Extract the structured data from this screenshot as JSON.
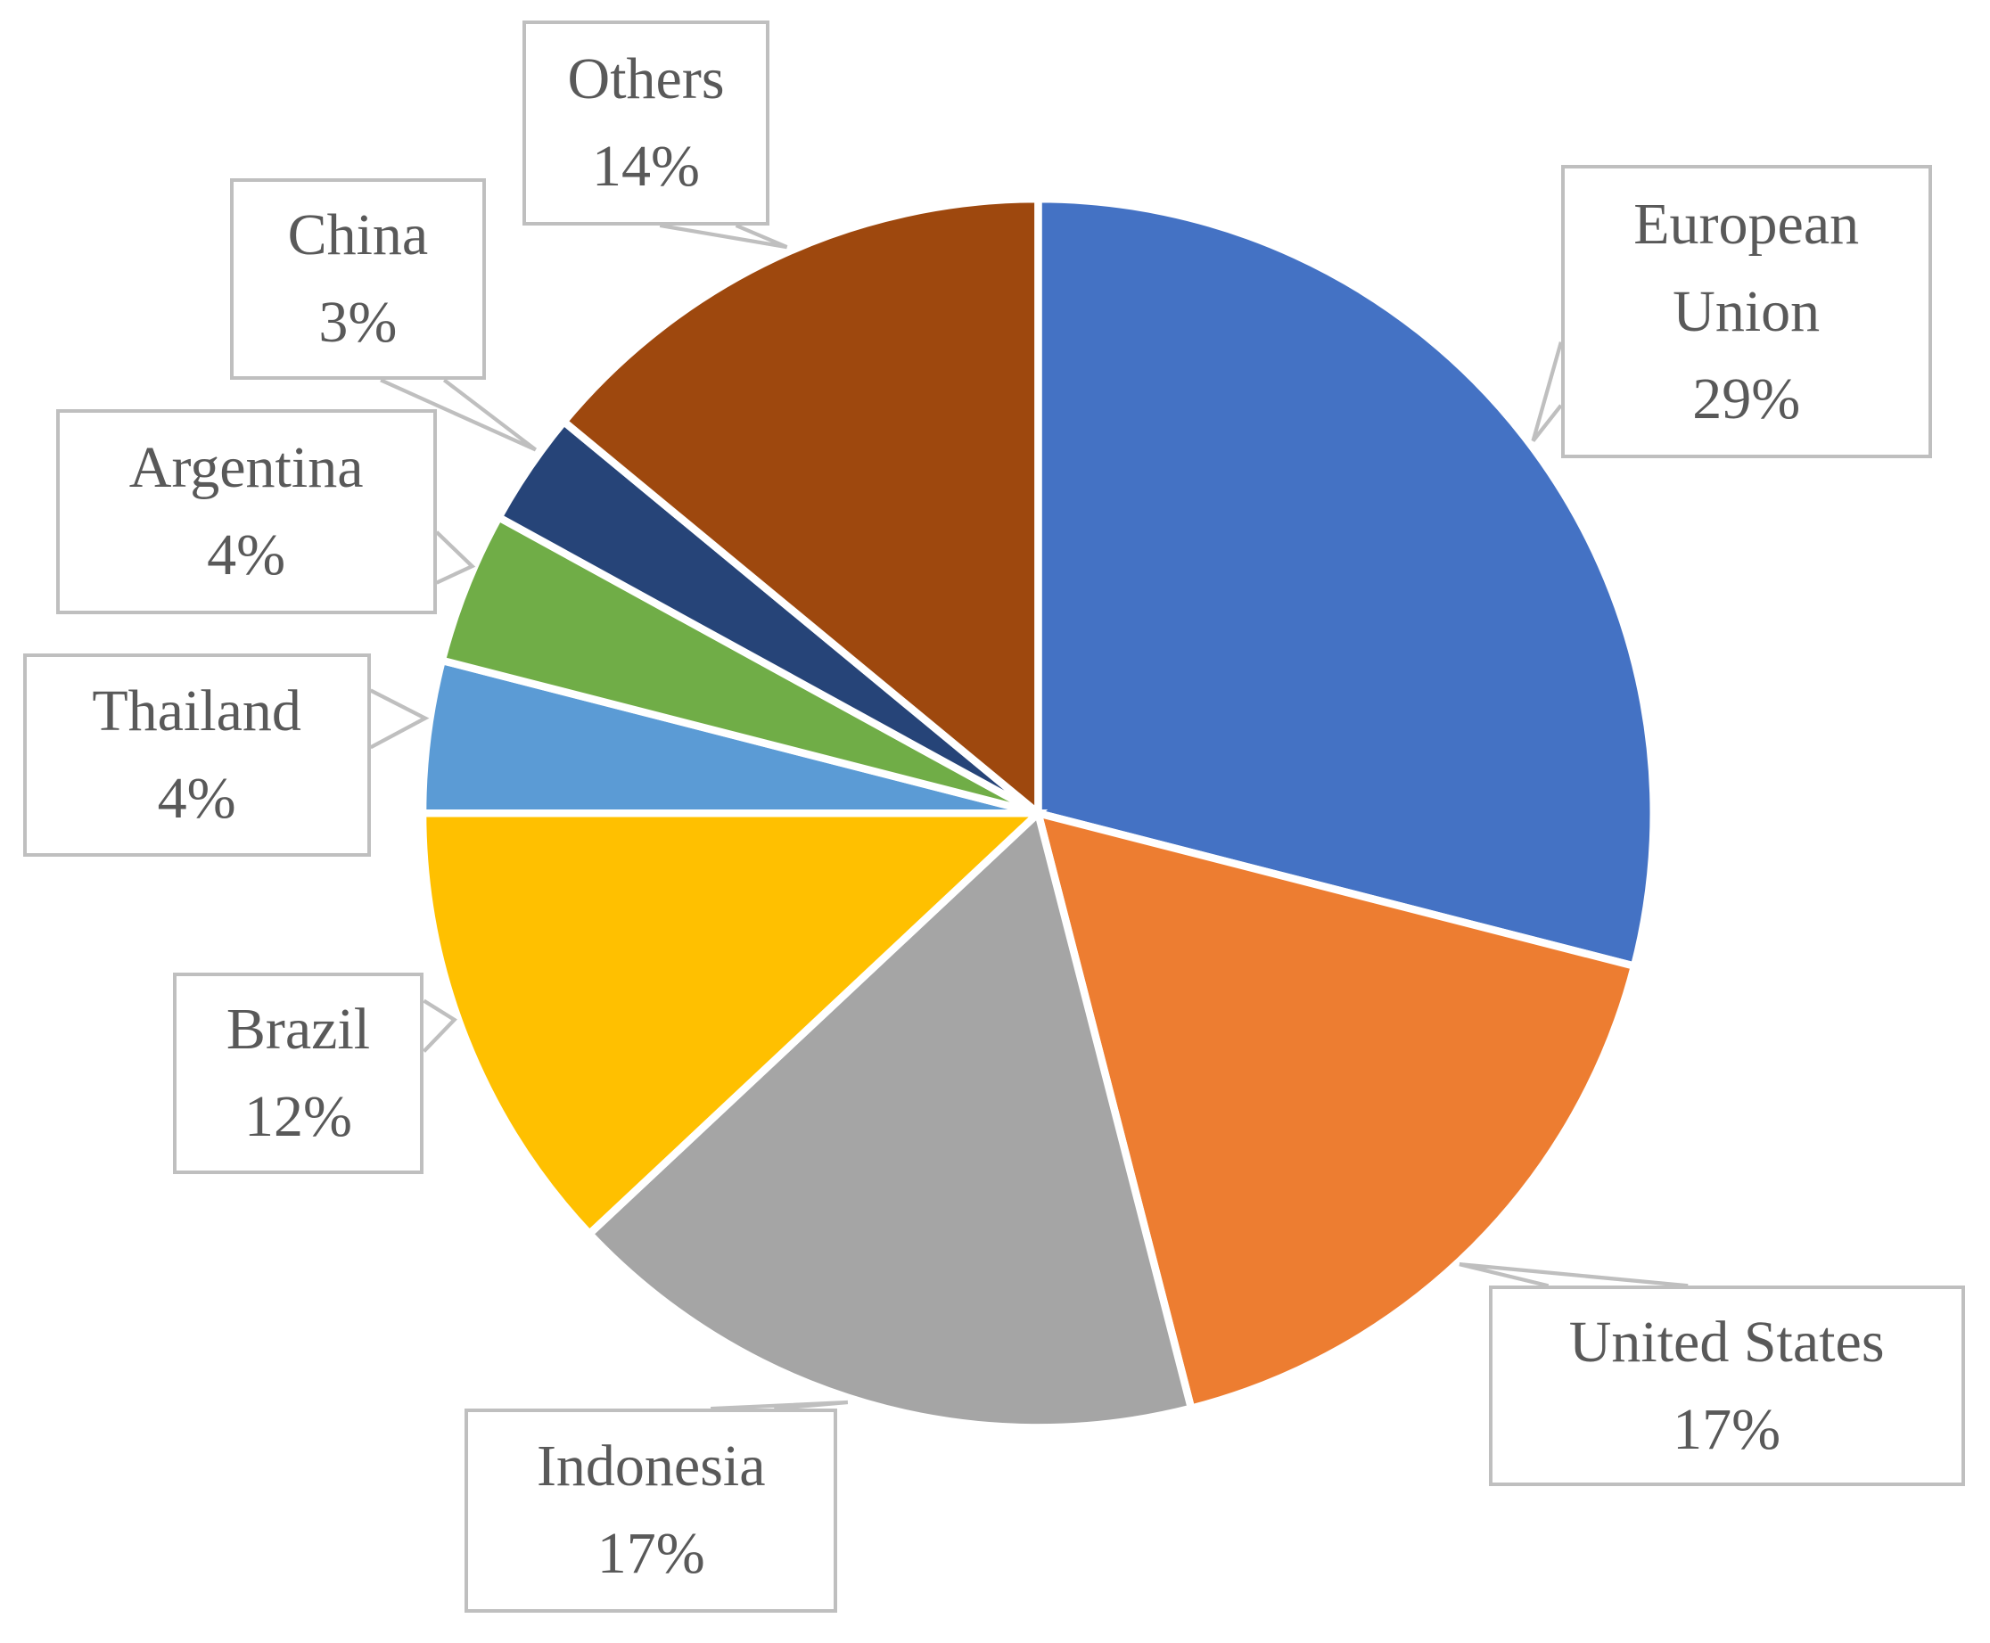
{
  "chart_data": {
    "type": "pie",
    "categories": [
      "European Union",
      "United States",
      "Indonesia",
      "Brazil",
      "Thailand",
      "Argentina",
      "China",
      "Others"
    ],
    "values": [
      29,
      17,
      17,
      12,
      4,
      4,
      3,
      14
    ],
    "value_labels": [
      "29%",
      "17%",
      "17%",
      "12%",
      "4%",
      "4%",
      "3%",
      "14%"
    ],
    "colors": [
      "#4472c4",
      "#ed7d31",
      "#a5a5a5",
      "#ffc000",
      "#5b9bd5",
      "#70ad47",
      "#264478",
      "#9e480e"
    ]
  }
}
